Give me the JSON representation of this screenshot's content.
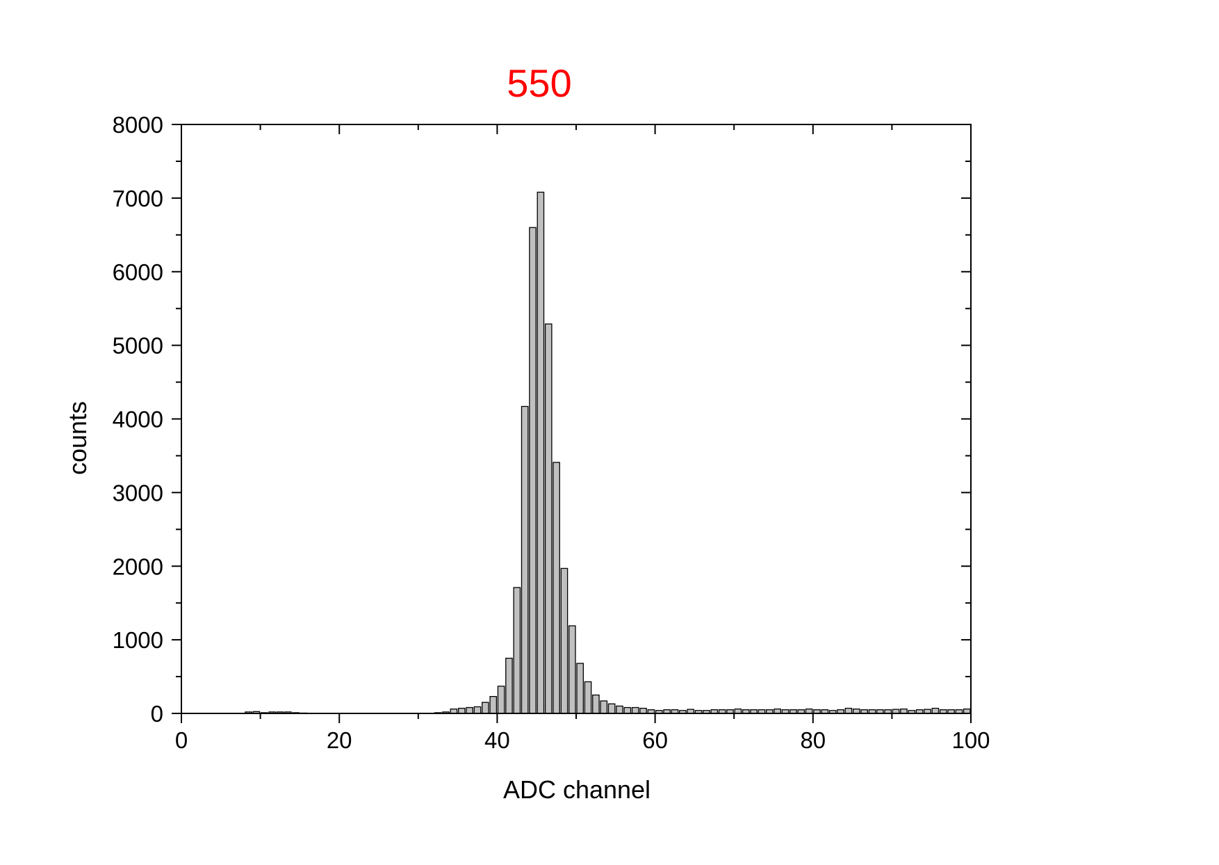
{
  "chart_data": {
    "type": "bar",
    "title": "550",
    "xlabel": "ADC channel",
    "ylabel": "counts",
    "xlim": [
      0,
      100
    ],
    "ylim": [
      0,
      8000
    ],
    "x_ticks": [
      "0",
      "20",
      "40",
      "60",
      "80",
      "100"
    ],
    "y_ticks": [
      "0",
      "1000",
      "2000",
      "3000",
      "4000",
      "5000",
      "6000",
      "7000",
      "8000"
    ],
    "grid": false,
    "legend": "none",
    "colors": {
      "title": "#ff0000",
      "bar_fill": "#c0c0c0",
      "bar_stroke": "#000000",
      "axis": "#000000"
    },
    "series": [
      {
        "x": [
          8,
          9,
          10,
          11,
          12,
          13,
          14,
          15,
          16,
          17,
          18,
          19,
          20,
          21,
          22,
          23,
          24,
          25,
          26,
          27,
          28,
          29,
          30,
          31,
          32,
          33,
          34,
          35,
          36,
          37,
          38,
          39,
          40,
          41,
          42,
          43,
          44,
          45,
          46,
          47,
          48,
          49,
          50,
          51,
          52,
          53,
          54,
          55,
          56,
          57,
          58,
          59,
          60,
          61,
          62,
          63,
          64,
          65,
          66,
          67,
          68,
          69,
          70,
          71,
          72,
          73,
          74,
          75,
          76,
          77,
          78,
          79,
          80,
          81,
          82,
          83,
          84,
          85,
          86,
          87,
          88,
          89,
          90,
          91,
          92,
          93,
          94,
          95,
          96,
          97,
          98,
          99
        ],
        "values": [
          20,
          25,
          10,
          20,
          20,
          20,
          10,
          5,
          0,
          0,
          0,
          0,
          0,
          0,
          0,
          0,
          0,
          0,
          0,
          0,
          0,
          0,
          0,
          0,
          10,
          20,
          60,
          70,
          80,
          90,
          150,
          230,
          370,
          750,
          1710,
          4170,
          6600,
          7080,
          5290,
          3410,
          1970,
          1190,
          680,
          430,
          250,
          170,
          130,
          100,
          80,
          80,
          70,
          50,
          40,
          50,
          50,
          40,
          55,
          40,
          40,
          50,
          50,
          50,
          60,
          50,
          50,
          50,
          50,
          60,
          50,
          50,
          50,
          60,
          50,
          50,
          40,
          50,
          70,
          60,
          50,
          50,
          50,
          50,
          55,
          60,
          40,
          50,
          55,
          70,
          50,
          50,
          50,
          60
        ]
      }
    ]
  }
}
